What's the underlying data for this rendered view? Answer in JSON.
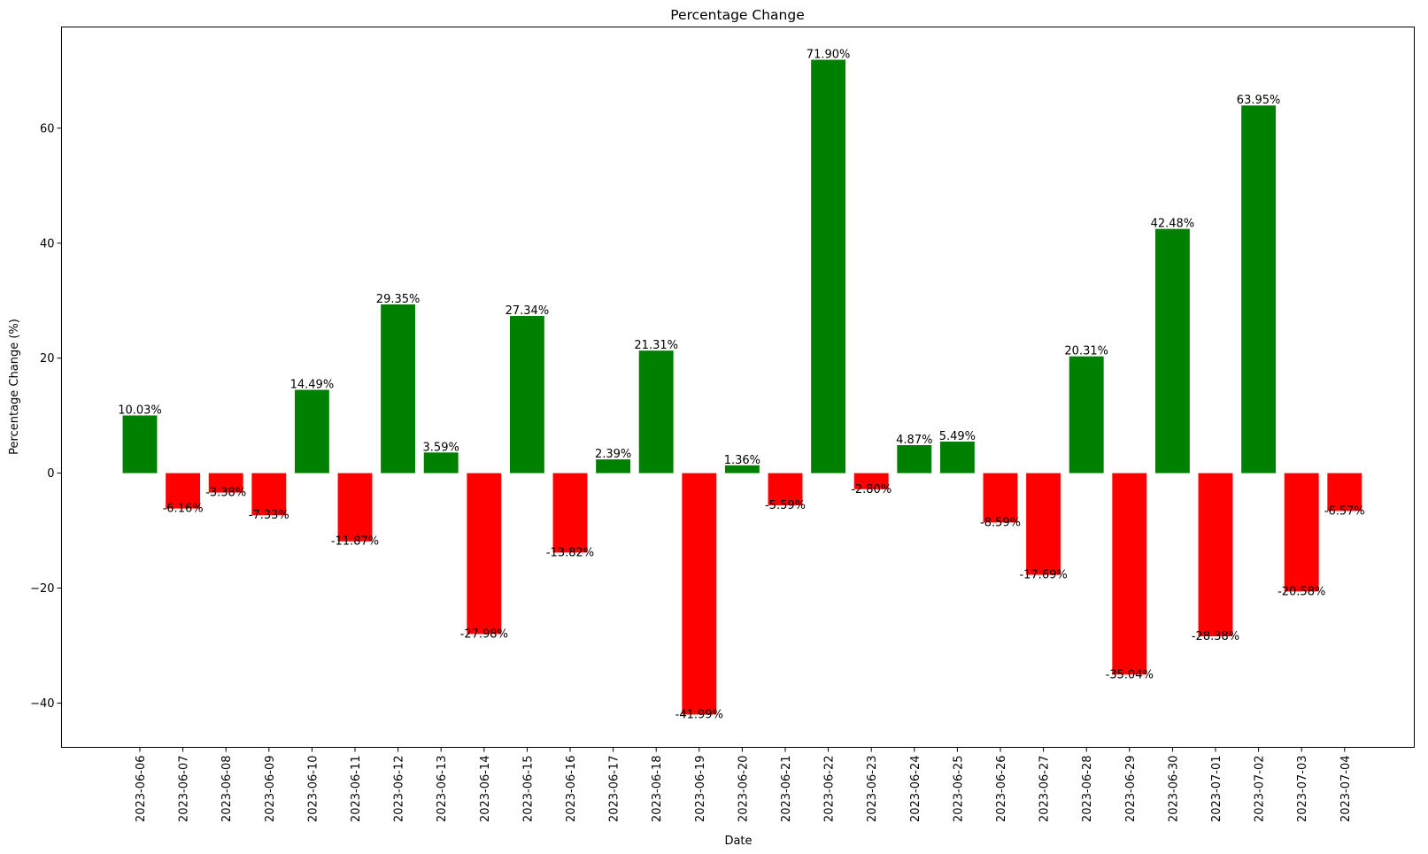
{
  "chart_data": {
    "type": "bar",
    "title": "Percentage Change",
    "xlabel": "Date",
    "ylabel": "Percentage Change (%)",
    "ylim": [
      -47.7,
      77.6
    ],
    "yticks": [
      -40,
      -20,
      0,
      20,
      40,
      60
    ],
    "ytick_labels": [
      "−40",
      "−20",
      "0",
      "20",
      "40",
      "60"
    ],
    "grid": false,
    "legend": "none",
    "colors": {
      "positive": "#008000",
      "negative": "#ff0000"
    },
    "categories": [
      "2023-06-06",
      "2023-06-07",
      "2023-06-08",
      "2023-06-09",
      "2023-06-10",
      "2023-06-11",
      "2023-06-12",
      "2023-06-13",
      "2023-06-14",
      "2023-06-15",
      "2023-06-16",
      "2023-06-17",
      "2023-06-18",
      "2023-06-19",
      "2023-06-20",
      "2023-06-21",
      "2023-06-22",
      "2023-06-23",
      "2023-06-24",
      "2023-06-25",
      "2023-06-26",
      "2023-06-27",
      "2023-06-28",
      "2023-06-29",
      "2023-06-30",
      "2023-07-01",
      "2023-07-02",
      "2023-07-03",
      "2023-07-04"
    ],
    "values": [
      10.03,
      -6.16,
      -3.38,
      -7.33,
      14.49,
      -11.87,
      29.35,
      3.59,
      -27.98,
      27.34,
      -13.82,
      2.39,
      21.31,
      -41.99,
      1.36,
      -5.59,
      71.9,
      -2.8,
      4.87,
      5.49,
      -8.59,
      -17.69,
      20.31,
      -35.04,
      42.48,
      -28.38,
      63.95,
      -20.58,
      -6.57
    ],
    "data_labels": [
      "10.03%",
      "-6.16%",
      "-3.38%",
      "-7.33%",
      "14.49%",
      "-11.87%",
      "29.35%",
      "3.59%",
      "-27.98%",
      "27.34%",
      "-13.82%",
      "2.39%",
      "21.31%",
      "-41.99%",
      "1.36%",
      "-5.59%",
      "71.90%",
      "-2.80%",
      "4.87%",
      "5.49%",
      "-8.59%",
      "-17.69%",
      "20.31%",
      "-35.04%",
      "42.48%",
      "-28.38%",
      "63.95%",
      "-20.58%",
      "-6.57%"
    ]
  }
}
